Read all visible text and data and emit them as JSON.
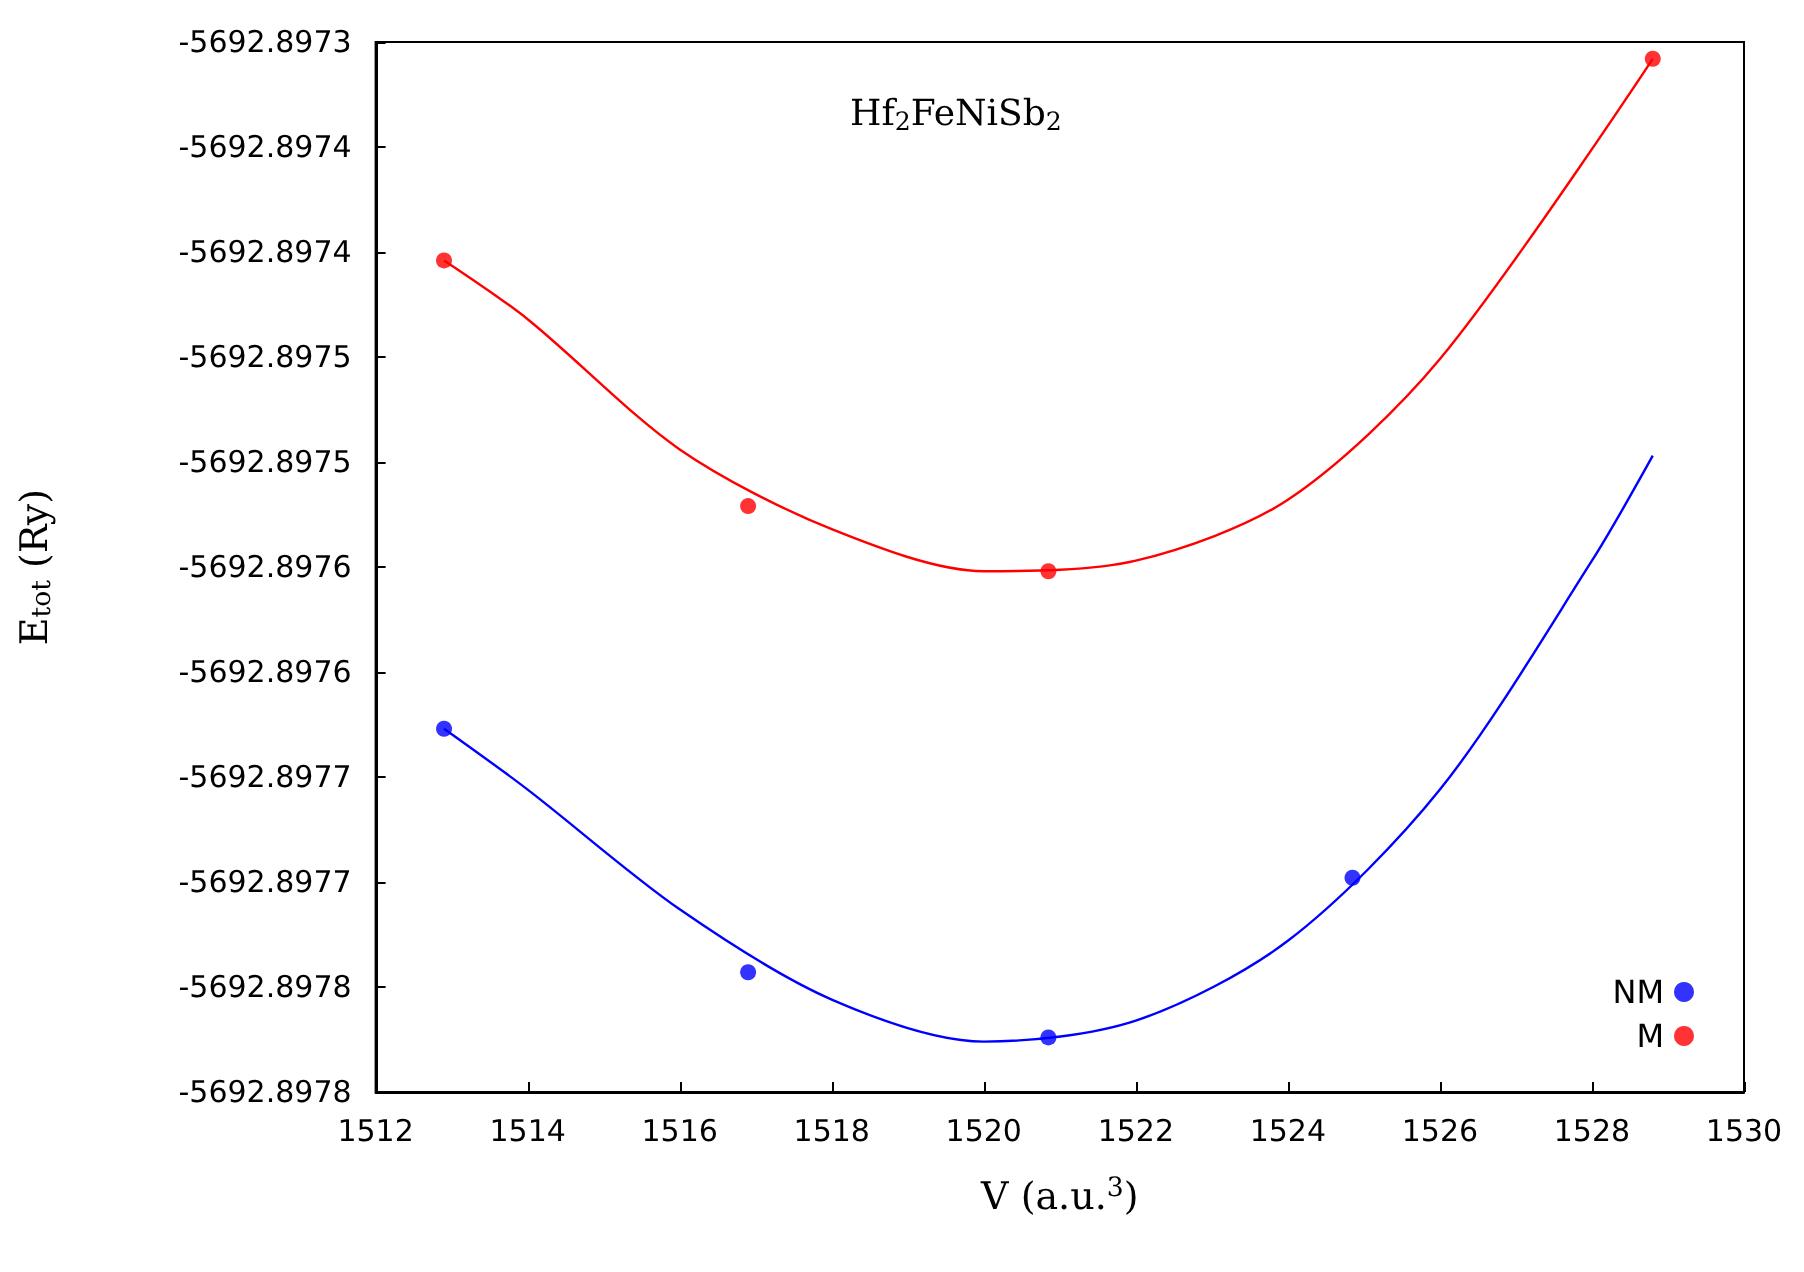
{
  "chart_data": {
    "type": "scatter",
    "title": "Hf$_{2}$FeNiSb$_{2}$",
    "xlabel": "V (a.u.$^{3}$)",
    "ylabel": "E$_{tot}$ (Ry)",
    "xlim": [
      1512,
      1530
    ],
    "xticks": [
      1512,
      1514,
      1516,
      1518,
      1520,
      1522,
      1524,
      1526,
      1528,
      1530
    ],
    "ylim": [
      -5692.8978,
      -5692.8973
    ],
    "yticks": [
      {
        "value": -5692.8978,
        "label": "-5692.8978"
      },
      {
        "value": -5692.89775,
        "label": "-5692.8978"
      },
      {
        "value": -5692.8977,
        "label": "-5692.8977"
      },
      {
        "value": -5692.89765,
        "label": "-5692.8977"
      },
      {
        "value": -5692.8976,
        "label": "-5692.8976"
      },
      {
        "value": -5692.89755,
        "label": "-5692.8976"
      },
      {
        "value": -5692.8975,
        "label": "-5692.8975"
      },
      {
        "value": -5692.89745,
        "label": "-5692.8975"
      },
      {
        "value": -5692.8974,
        "label": "-5692.8974"
      },
      {
        "value": -5692.89735,
        "label": "-5692.8974"
      },
      {
        "value": -5692.8973,
        "label": "-5692.8973"
      }
    ],
    "grid": false,
    "legend": "bottom right",
    "marker": "circle",
    "series": [
      {
        "type": "line",
        "color": "#ff0000",
        "marker": "none",
        "x": [
          1512.9,
          1514,
          1516,
          1518,
          1520,
          1522,
          1524,
          1526,
          1528.8
        ],
        "values": [
          -5692.897404,
          -5692.897432,
          -5692.897494,
          -5692.897532,
          -5692.897552,
          -5692.897547,
          -5692.897518,
          -5692.897451,
          -5692.897308
        ]
      },
      {
        "type": "line",
        "color": "#0000ff",
        "marker": "none",
        "x": [
          1512.9,
          1514,
          1516,
          1518,
          1520,
          1522,
          1524,
          1526,
          1528,
          1528.8
        ],
        "values": [
          -5692.897627,
          -5692.897656,
          -5692.897713,
          -5692.897756,
          -5692.897776,
          -5692.897766,
          -5692.897728,
          -5692.897656,
          -5692.897547,
          -5692.897497
        ]
      },
      {
        "name": "NM",
        "color": "#0000ff",
        "x": [
          1512.9,
          1516.9,
          1520.85,
          1524.85
        ],
        "values": [
          -5692.897627,
          -5692.897743,
          -5692.897774,
          -5692.897698
        ]
      },
      {
        "name": "M",
        "color": "#ff0000",
        "x": [
          1512.9,
          1516.9,
          1520.85,
          1528.8
        ],
        "values": [
          -5692.897404,
          -5692.897521,
          -5692.897552,
          -5692.897308
        ]
      }
    ]
  }
}
